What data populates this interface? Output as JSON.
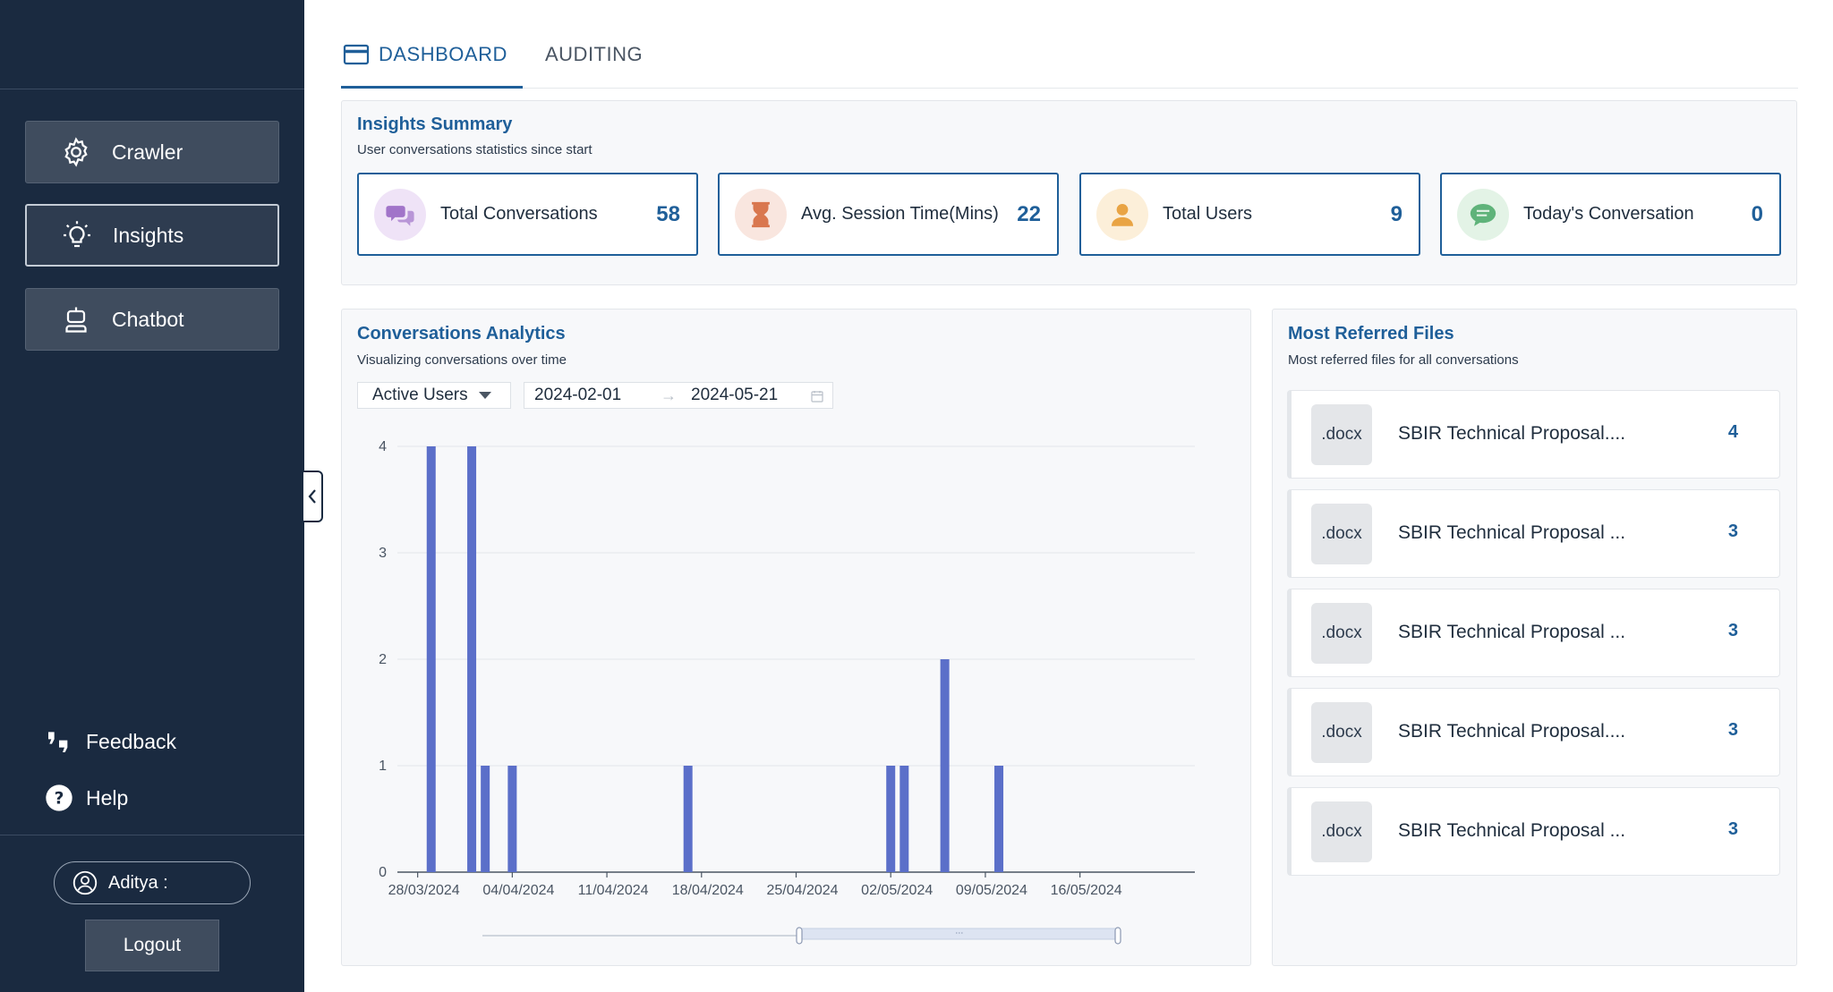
{
  "sidebar": {
    "nav": [
      {
        "label": "Crawler",
        "icon": "gear-icon",
        "active": false
      },
      {
        "label": "Insights",
        "icon": "lightbulb-icon",
        "active": true
      },
      {
        "label": "Chatbot",
        "icon": "robot-icon",
        "active": false
      }
    ],
    "feedback_label": "Feedback",
    "help_label": "Help",
    "user_name": "Aditya :",
    "logout_label": "Logout"
  },
  "tabs": [
    {
      "label": "DASHBOARD",
      "active": true
    },
    {
      "label": "AUDITING",
      "active": false
    }
  ],
  "insights_summary": {
    "title": "Insights Summary",
    "subtitle": "User conversations statistics since start",
    "cards": [
      {
        "label": "Total Conversations",
        "value": "58",
        "icon": "chat-bubbles-icon",
        "icon_bg": "#efe3f7",
        "icon_color": "#a174c9"
      },
      {
        "label": "Avg. Session Time(Mins)",
        "value": "22",
        "icon": "hourglass-icon",
        "icon_bg": "#f9e6df",
        "icon_color": "#d9774f"
      },
      {
        "label": "Total Users",
        "value": "9",
        "icon": "user-icon",
        "icon_bg": "#fcefd9",
        "icon_color": "#e9a444"
      },
      {
        "label": "Today's Conversation",
        "value": "0",
        "icon": "message-icon",
        "icon_bg": "#e3f3e6",
        "icon_color": "#5fb37a"
      }
    ]
  },
  "analytics": {
    "title": "Conversations Analytics",
    "subtitle": "Visualizing conversations over time",
    "metric_select": "Active Users",
    "date_start": "2024-02-01",
    "date_end": "2024-05-21"
  },
  "chart_data": {
    "type": "bar",
    "x": [
      "2024-03-29",
      "2024-04-01",
      "2024-04-02",
      "2024-04-04",
      "2024-04-17",
      "2024-05-02",
      "2024-05-03",
      "2024-05-06",
      "2024-05-10"
    ],
    "values": [
      4,
      4,
      1,
      1,
      1,
      1,
      1,
      2,
      1
    ],
    "x_ticks": [
      "28/03/2024",
      "04/04/2024",
      "11/04/2024",
      "18/04/2024",
      "25/04/2024",
      "02/05/2024",
      "09/05/2024",
      "16/05/2024"
    ],
    "y_ticks": [
      "0",
      "1",
      "2",
      "3",
      "4"
    ],
    "ylim": [
      0,
      4
    ],
    "xlim": [
      "2024-03-27",
      "2024-05-25"
    ],
    "bar_color": "#5b6fc9",
    "grid": true,
    "has_zoom_slider": true
  },
  "referred_files": {
    "title": "Most Referred Files",
    "subtitle": "Most referred files for all conversations",
    "files": [
      {
        "ext": ".docx",
        "name": "SBIR Technical Proposal....",
        "count": "4"
      },
      {
        "ext": ".docx",
        "name": "SBIR Technical Proposal ...",
        "count": "3"
      },
      {
        "ext": ".docx",
        "name": "SBIR Technical Proposal ...",
        "count": "3"
      },
      {
        "ext": ".docx",
        "name": "SBIR Technical Proposal....",
        "count": "3"
      },
      {
        "ext": ".docx",
        "name": "SBIR Technical Proposal ...",
        "count": "3"
      }
    ]
  }
}
